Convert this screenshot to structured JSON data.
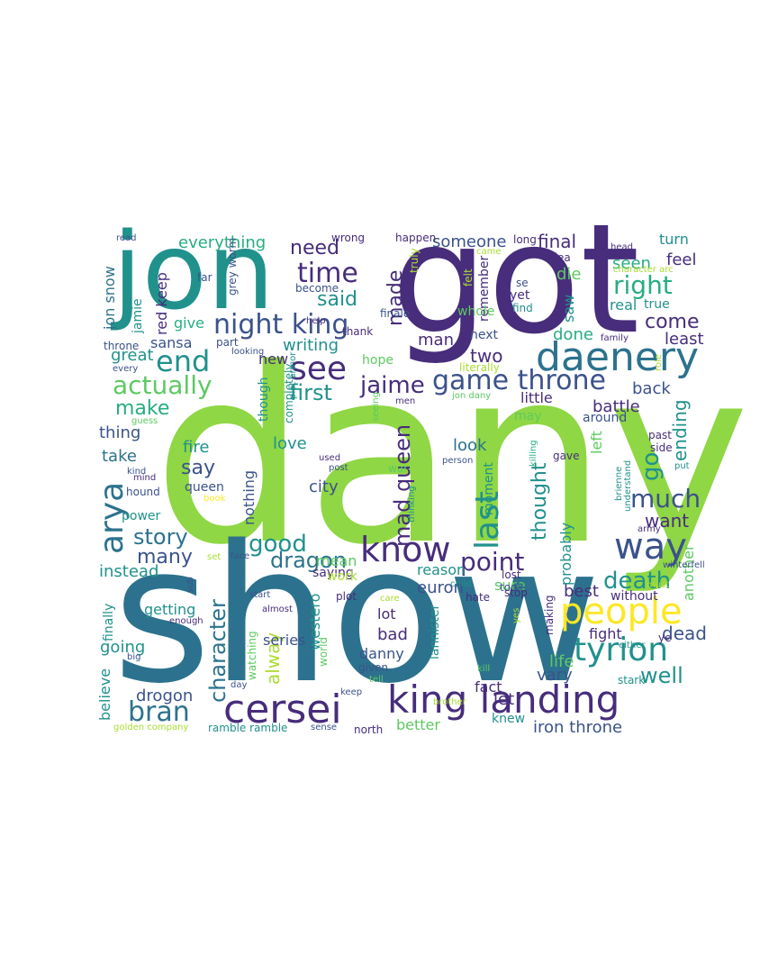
{
  "palette": {
    "purple": "#472d7b",
    "indigo": "#3b528b",
    "steel": "#2c728e",
    "teal": "#21918c",
    "green": "#27ad81",
    "lime": "#5ec962",
    "yellowgreen": "#aadc32",
    "yellow": "#fde725",
    "brightgreen": "#8fd744"
  },
  "words": [
    {
      "text": "dany",
      "color": "brightgreen"
    },
    {
      "text": "show",
      "color": "steel"
    },
    {
      "text": "got",
      "color": "purple"
    },
    {
      "text": "jon",
      "color": "teal"
    },
    {
      "text": "daenery",
      "color": "steel"
    },
    {
      "text": "king landing",
      "color": "purple"
    },
    {
      "text": "cersei",
      "color": "purple"
    },
    {
      "text": "people",
      "color": "yellow"
    },
    {
      "text": "know",
      "color": "purple"
    },
    {
      "text": "way",
      "color": "indigo"
    },
    {
      "text": "tyrion",
      "color": "teal"
    },
    {
      "text": "night king",
      "color": "indigo"
    },
    {
      "text": "game throne",
      "color": "indigo"
    },
    {
      "text": "see",
      "color": "purple"
    },
    {
      "text": "end",
      "color": "teal"
    },
    {
      "text": "time",
      "color": "purple"
    },
    {
      "text": "arya",
      "color": "steel"
    },
    {
      "text": "right",
      "color": "green"
    },
    {
      "text": "jaime",
      "color": "purple"
    },
    {
      "text": "actually",
      "color": "lime"
    },
    {
      "text": "last",
      "color": "teal"
    },
    {
      "text": "point",
      "color": "purple"
    },
    {
      "text": "bran",
      "color": "steel"
    },
    {
      "text": "character",
      "color": "steel"
    },
    {
      "text": "mad queen",
      "color": "purple"
    },
    {
      "text": "much",
      "color": "indigo"
    },
    {
      "text": "death",
      "color": "teal"
    },
    {
      "text": "story",
      "color": "steel"
    },
    {
      "text": "good",
      "color": "teal"
    },
    {
      "text": "dragon",
      "color": "steel"
    },
    {
      "text": "first",
      "color": "teal"
    },
    {
      "text": "made",
      "color": "purple"
    },
    {
      "text": "need",
      "color": "purple"
    },
    {
      "text": "said",
      "color": "teal"
    },
    {
      "text": "thought",
      "color": "teal"
    },
    {
      "text": "make",
      "color": "green"
    },
    {
      "text": "well",
      "color": "teal"
    },
    {
      "text": "come",
      "color": "purple"
    },
    {
      "text": "go",
      "color": "teal"
    },
    {
      "text": "ending",
      "color": "teal"
    },
    {
      "text": "everything",
      "color": "green"
    },
    {
      "text": "someone",
      "color": "indigo"
    },
    {
      "text": "final",
      "color": "purple"
    },
    {
      "text": "seen",
      "color": "green"
    },
    {
      "text": "turn",
      "color": "teal"
    },
    {
      "text": "feel",
      "color": "purple"
    },
    {
      "text": "die",
      "color": "lime"
    },
    {
      "text": "saw",
      "color": "teal"
    },
    {
      "text": "real",
      "color": "teal"
    },
    {
      "text": "true",
      "color": "teal"
    },
    {
      "text": "done",
      "color": "green"
    },
    {
      "text": "least",
      "color": "purple"
    },
    {
      "text": "back",
      "color": "indigo"
    },
    {
      "text": "battle",
      "color": "purple"
    },
    {
      "text": "around",
      "color": "indigo"
    },
    {
      "text": "jon snow",
      "color": "steel"
    },
    {
      "text": "jamie",
      "color": "teal"
    },
    {
      "text": "red keep",
      "color": "purple"
    },
    {
      "text": "give",
      "color": "green"
    },
    {
      "text": "sansa",
      "color": "indigo"
    },
    {
      "text": "great",
      "color": "teal"
    },
    {
      "text": "writing",
      "color": "teal"
    },
    {
      "text": "two",
      "color": "purple"
    },
    {
      "text": "man",
      "color": "purple"
    },
    {
      "text": "next",
      "color": "indigo"
    },
    {
      "text": "thing",
      "color": "indigo"
    },
    {
      "text": "take",
      "color": "steel"
    },
    {
      "text": "fire",
      "color": "teal"
    },
    {
      "text": "say",
      "color": "indigo"
    },
    {
      "text": "love",
      "color": "teal"
    },
    {
      "text": "look",
      "color": "steel"
    },
    {
      "text": "city",
      "color": "indigo"
    },
    {
      "text": "queen",
      "color": "indigo"
    },
    {
      "text": "many",
      "color": "indigo"
    },
    {
      "text": "instead",
      "color": "teal"
    },
    {
      "text": "nothing",
      "color": "indigo"
    },
    {
      "text": "want",
      "color": "purple"
    },
    {
      "text": "probably",
      "color": "teal"
    },
    {
      "text": "euron",
      "color": "indigo"
    },
    {
      "text": "sure",
      "color": "lime"
    },
    {
      "text": "reason",
      "color": "teal"
    },
    {
      "text": "mean",
      "color": "lime"
    },
    {
      "text": "saying",
      "color": "purple"
    },
    {
      "text": "best",
      "color": "purple"
    },
    {
      "text": "fight",
      "color": "purple"
    },
    {
      "text": "dead",
      "color": "indigo"
    },
    {
      "text": "vary",
      "color": "indigo"
    },
    {
      "text": "life",
      "color": "lime"
    },
    {
      "text": "let",
      "color": "purple"
    },
    {
      "text": "fact",
      "color": "purple"
    },
    {
      "text": "iron throne",
      "color": "indigo"
    },
    {
      "text": "drogon",
      "color": "indigo"
    },
    {
      "text": "better",
      "color": "lime"
    },
    {
      "text": "alway",
      "color": "yellowgreen"
    },
    {
      "text": "westero",
      "color": "teal"
    },
    {
      "text": "going",
      "color": "teal"
    },
    {
      "text": "believe",
      "color": "teal"
    },
    {
      "text": "getting",
      "color": "teal"
    },
    {
      "text": "finally",
      "color": "teal"
    },
    {
      "text": "lot",
      "color": "purple"
    },
    {
      "text": "bad",
      "color": "purple"
    },
    {
      "text": "danny",
      "color": "indigo"
    },
    {
      "text": "lannister",
      "color": "teal"
    },
    {
      "text": "another",
      "color": "lime"
    },
    {
      "text": "without",
      "color": "purple"
    },
    {
      "text": "series",
      "color": "indigo"
    },
    {
      "text": "new",
      "color": "purple"
    },
    {
      "text": "though",
      "color": "teal"
    },
    {
      "text": "hope",
      "color": "lime"
    },
    {
      "text": "little",
      "color": "purple"
    },
    {
      "text": "may",
      "color": "lime"
    },
    {
      "text": "left",
      "color": "lime"
    },
    {
      "text": "moment",
      "color": "teal"
    },
    {
      "text": "power",
      "color": "teal"
    },
    {
      "text": "work",
      "color": "yellowgreen"
    },
    {
      "text": "watching",
      "color": "lime"
    },
    {
      "text": "remember",
      "color": "purple"
    },
    {
      "text": "whole",
      "color": "lime"
    },
    {
      "text": "making",
      "color": "purple"
    },
    {
      "text": "become",
      "color": "indigo"
    },
    {
      "text": "finale",
      "color": "indigo"
    },
    {
      "text": "part",
      "color": "indigo"
    },
    {
      "text": "wrong",
      "color": "purple"
    },
    {
      "text": "happen",
      "color": "purple"
    },
    {
      "text": "long",
      "color": "purple"
    },
    {
      "text": "se",
      "color": "indigo"
    },
    {
      "text": "yet",
      "color": "purple"
    },
    {
      "text": "idea",
      "color": "purple"
    },
    {
      "text": "find",
      "color": "teal"
    },
    {
      "text": "throne",
      "color": "indigo"
    },
    {
      "text": "every",
      "color": "indigo"
    },
    {
      "text": "far",
      "color": "indigo"
    },
    {
      "text": "read",
      "color": "indigo"
    },
    {
      "text": "thank",
      "color": "purple"
    },
    {
      "text": "felt",
      "color": "yellowgreen"
    },
    {
      "text": "truly",
      "color": "yellowgreen"
    },
    {
      "text": "help",
      "color": "purple"
    },
    {
      "text": "family",
      "color": "purple"
    },
    {
      "text": "grey worm",
      "color": "indigo"
    },
    {
      "text": "looking",
      "color": "indigo"
    },
    {
      "text": "mind",
      "color": "purple"
    },
    {
      "text": "kind",
      "color": "indigo"
    },
    {
      "text": "hound",
      "color": "indigo"
    },
    {
      "text": "guess",
      "color": "lime"
    },
    {
      "text": "book",
      "color": "yellow"
    },
    {
      "text": "completely",
      "color": "teal"
    },
    {
      "text": "plot armor",
      "color": "teal"
    },
    {
      "text": "used",
      "color": "purple"
    },
    {
      "text": "post",
      "color": "indigo"
    },
    {
      "text": "seeing",
      "color": "lime"
    },
    {
      "text": "thinking",
      "color": "teal"
    },
    {
      "text": "war",
      "color": "lime"
    },
    {
      "text": "person",
      "color": "indigo"
    },
    {
      "text": "killing",
      "color": "green"
    },
    {
      "text": "gave",
      "color": "purple"
    },
    {
      "text": "past",
      "color": "purple"
    },
    {
      "text": "side",
      "color": "purple"
    },
    {
      "text": "put",
      "color": "teal"
    },
    {
      "text": "brienne",
      "color": "teal"
    },
    {
      "text": "understand",
      "color": "teal"
    },
    {
      "text": "army",
      "color": "purple"
    },
    {
      "text": "winterfell",
      "color": "indigo"
    },
    {
      "text": "must",
      "color": "yellowgreen"
    },
    {
      "text": "either",
      "color": "teal"
    },
    {
      "text": "ye",
      "color": "purple"
    },
    {
      "text": "stark",
      "color": "teal"
    },
    {
      "text": "kill",
      "color": "lime"
    },
    {
      "text": "brother",
      "color": "yellowgreen"
    },
    {
      "text": "keep",
      "color": "indigo"
    },
    {
      "text": "north",
      "color": "purple"
    },
    {
      "text": "knew",
      "color": "teal"
    },
    {
      "text": "sense",
      "color": "indigo"
    },
    {
      "text": "world",
      "color": "lime"
    },
    {
      "text": "given",
      "color": "indigo"
    },
    {
      "text": "tell",
      "color": "lime"
    },
    {
      "text": "day",
      "color": "indigo"
    },
    {
      "text": "big",
      "color": "indigo"
    },
    {
      "text": "enough",
      "color": "purple"
    },
    {
      "text": "almost",
      "color": "purple"
    },
    {
      "text": "start",
      "color": "indigo"
    },
    {
      "text": "sub",
      "color": "indigo"
    },
    {
      "text": "set",
      "color": "yellowgreen"
    },
    {
      "text": "face",
      "color": "indigo"
    },
    {
      "text": "plot",
      "color": "purple"
    },
    {
      "text": "hate",
      "color": "purple"
    },
    {
      "text": "child",
      "color": "teal"
    },
    {
      "text": "lost",
      "color": "purple"
    },
    {
      "text": "took",
      "color": "indigo"
    },
    {
      "text": "stop",
      "color": "purple"
    },
    {
      "text": "care",
      "color": "yellowgreen"
    },
    {
      "text": "yes",
      "color": "yellowgreen"
    },
    {
      "text": "ramble ramble",
      "color": "teal"
    },
    {
      "text": "golden company",
      "color": "yellowgreen"
    },
    {
      "text": "character arc",
      "color": "yellowgreen"
    },
    {
      "text": "came",
      "color": "yellowgreen"
    },
    {
      "text": "head",
      "color": "purple"
    },
    {
      "text": "literally",
      "color": "yellowgreen"
    },
    {
      "text": "jon dany",
      "color": "lime"
    },
    {
      "text": "role",
      "color": "yellowgreen"
    },
    {
      "text": "men",
      "color": "purple"
    }
  ]
}
